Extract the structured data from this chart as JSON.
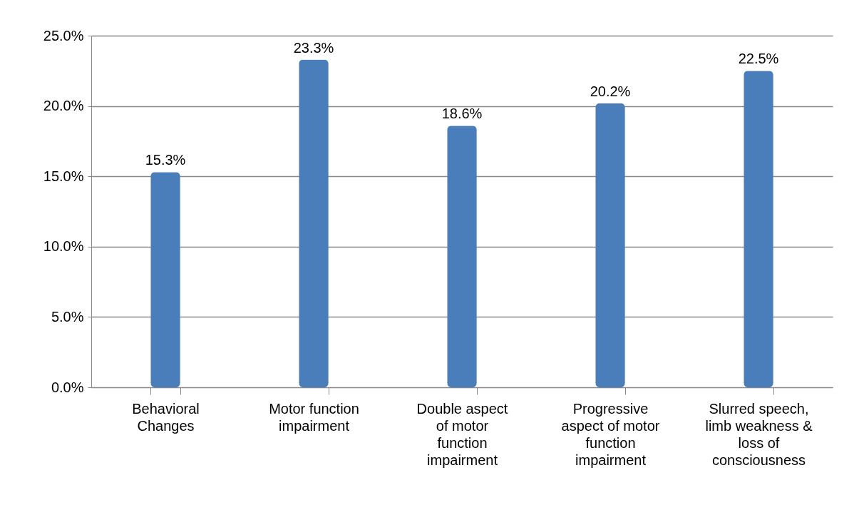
{
  "chart_data": {
    "type": "bar",
    "categories": [
      "Behavioral Changes",
      "Motor function impairment",
      "Double aspect of motor function impairment",
      "Progressive aspect of motor function impairment",
      "Slurred speech, limb weakness & loss of consciousness"
    ],
    "values": [
      15.3,
      23.3,
      18.6,
      20.2,
      22.5
    ],
    "value_labels": [
      "15.3%",
      "23.3%",
      "18.6%",
      "20.2%",
      "22.5%"
    ],
    "color": "#4a7ebb",
    "ylim": [
      0,
      25
    ],
    "yticks": [
      {
        "value": 0,
        "label": "0.0%"
      },
      {
        "value": 5,
        "label": "5.0%"
      },
      {
        "value": 10,
        "label": "10.0%"
      },
      {
        "value": 15,
        "label": "15.0%"
      },
      {
        "value": 20,
        "label": "20.0%"
      },
      {
        "value": 25,
        "label": "25.0%"
      }
    ],
    "grid": true
  }
}
